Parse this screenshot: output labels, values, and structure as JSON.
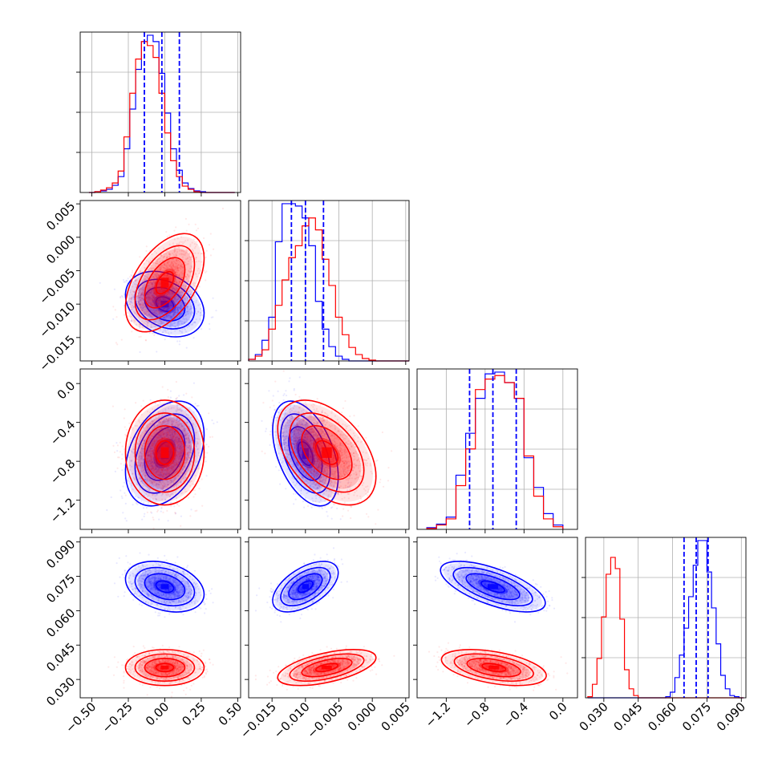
{
  "figure": {
    "type": "corner_plot",
    "n_params": 4,
    "colors": {
      "series_a": "#0000ff",
      "series_b": "#ff0000",
      "grid": "#b0b0b0",
      "frame": "#000000"
    }
  },
  "chart_data": {
    "type": "corner",
    "series": [
      {
        "color": "#0000ff",
        "means": [
          0.0,
          -0.01,
          -0.72,
          0.0705
        ],
        "stds": [
          0.11,
          0.002,
          0.22,
          0.0045
        ],
        "quantiles": [
          [
            -0.14,
            -0.02,
            0.1
          ],
          [
            -0.0121,
            -0.01,
            -0.0073
          ],
          [
            -0.96,
            -0.72,
            -0.48
          ],
          [
            0.065,
            0.0703,
            0.0755
          ]
        ]
      },
      {
        "color": "#ff0000",
        "means": [
          0.0,
          -0.0068,
          -0.71,
          0.0352
        ],
        "stds": [
          0.11,
          0.003,
          0.22,
          0.0032
        ]
      }
    ],
    "params": [
      {
        "range": [
          -0.58,
          0.52
        ],
        "ticks": [
          -0.5,
          -0.25,
          0.0,
          0.25,
          0.5
        ],
        "tick_labels": [
          "−0.50",
          "−0.25",
          "0.00",
          "0.25",
          "0.50"
        ]
      },
      {
        "range": [
          -0.0185,
          0.0055
        ],
        "ticks": [
          -0.015,
          -0.01,
          -0.005,
          0.0,
          0.005
        ],
        "tick_labels": [
          "−0.015",
          "−0.010",
          "−0.005",
          "0.000",
          "0.005"
        ]
      },
      {
        "range": [
          -1.5,
          0.15
        ],
        "ticks": [
          -1.2,
          -0.8,
          -0.4,
          0.0
        ],
        "tick_labels": [
          "−1.2",
          "−0.8",
          "−0.4",
          "0.0"
        ]
      },
      {
        "range": [
          0.022,
          0.092
        ],
        "ticks": [
          0.03,
          0.045,
          0.06,
          0.075,
          0.09
        ],
        "tick_labels": [
          "0.030",
          "0.045",
          "0.060",
          "0.075",
          "0.090"
        ]
      }
    ],
    "correlations": {
      "series_a": {
        "0-1": -0.28,
        "0-2": 0.35,
        "1-2": -0.45,
        "0-3": -0.3,
        "1-3": 0.55,
        "2-3": -0.65
      },
      "series_b": {
        "0-1": 0.5,
        "0-2": 0.0,
        "1-2": -0.45,
        "0-3": 0.0,
        "1-3": 0.55,
        "2-3": -0.45
      }
    },
    "histograms": [
      {
        "param": 0,
        "bins": [
          -0.52,
          -0.48,
          -0.44,
          -0.4,
          -0.36,
          -0.32,
          -0.28,
          -0.24,
          -0.2,
          -0.16,
          -0.12,
          -0.08,
          -0.04,
          0.0,
          0.04,
          0.08,
          0.12,
          0.16,
          0.2,
          0.24,
          0.28,
          0.32,
          0.36,
          0.4,
          0.44,
          0.48
        ],
        "series_a": [
          0,
          1,
          2,
          4,
          9,
          20,
          55,
          105,
          155,
          190,
          198,
          190,
          150,
          100,
          55,
          28,
          12,
          5,
          2,
          1,
          0,
          0,
          0,
          0,
          0
        ],
        "series_b": [
          0,
          1,
          3,
          6,
          12,
          27,
          70,
          125,
          168,
          190,
          185,
          170,
          125,
          75,
          40,
          20,
          8,
          4,
          1,
          0,
          0,
          0,
          0,
          0,
          0
        ]
      },
      {
        "param": 1,
        "bins": [
          -0.0185,
          -0.0175,
          -0.0165,
          -0.0155,
          -0.0145,
          -0.0135,
          -0.0125,
          -0.0115,
          -0.0105,
          -0.0095,
          -0.0085,
          -0.0075,
          -0.0065,
          -0.0055,
          -0.0045,
          -0.0035,
          -0.0025,
          -0.0015,
          -0.0005,
          0.0005,
          0.0015,
          0.0025,
          0.0035,
          0.0045,
          0.0055
        ],
        "series_a": [
          2,
          8,
          26,
          55,
          150,
          198,
          198,
          195,
          180,
          145,
          75,
          40,
          18,
          6,
          2,
          0,
          0,
          0,
          0,
          0,
          0,
          0,
          0,
          0
        ],
        "series_b": [
          2,
          6,
          14,
          40,
          70,
          102,
          130,
          145,
          170,
          180,
          165,
          128,
          95,
          55,
          33,
          17,
          8,
          3,
          1,
          0,
          0,
          0,
          0,
          0
        ]
      },
      {
        "param": 2,
        "bins": [
          -1.4,
          -1.3,
          -1.2,
          -1.1,
          -1.0,
          -0.9,
          -0.8,
          -0.7,
          -0.6,
          -0.5,
          -0.4,
          -0.3,
          -0.2,
          -0.1,
          0.0
        ],
        "series_a": [
          2,
          6,
          14,
          62,
          110,
          150,
          178,
          180,
          168,
          150,
          82,
          48,
          18,
          5
        ],
        "series_b": [
          1,
          5,
          12,
          50,
          92,
          160,
          172,
          176,
          168,
          150,
          84,
          38,
          12,
          3
        ]
      },
      {
        "param": 3,
        "bins": [
          0.023,
          0.025,
          0.027,
          0.029,
          0.031,
          0.033,
          0.035,
          0.037,
          0.039,
          0.041,
          0.043,
          0.045,
          0.047,
          0.049,
          0.051,
          0.053,
          0.055,
          0.057,
          0.059,
          0.061,
          0.063,
          0.065,
          0.067,
          0.069,
          0.071,
          0.073,
          0.075,
          0.077,
          0.079,
          0.081,
          0.083,
          0.085,
          0.087,
          0.089,
          0.091
        ],
        "series_a": [
          0,
          0,
          0,
          0,
          0,
          0,
          0,
          0,
          0,
          0,
          0,
          0,
          0,
          0,
          0,
          0,
          0,
          1,
          5,
          18,
          38,
          62,
          90,
          118,
          140,
          140,
          112,
          80,
          48,
          20,
          8,
          2,
          1,
          0
        ],
        "series_b": [
          1,
          12,
          35,
          72,
          110,
          125,
          115,
          70,
          25,
          8,
          2,
          0,
          0,
          0,
          0,
          0,
          0,
          0,
          0,
          0,
          0,
          0,
          0,
          0,
          0,
          0,
          0,
          0,
          0,
          0,
          0,
          0,
          0,
          0
        ]
      }
    ]
  }
}
